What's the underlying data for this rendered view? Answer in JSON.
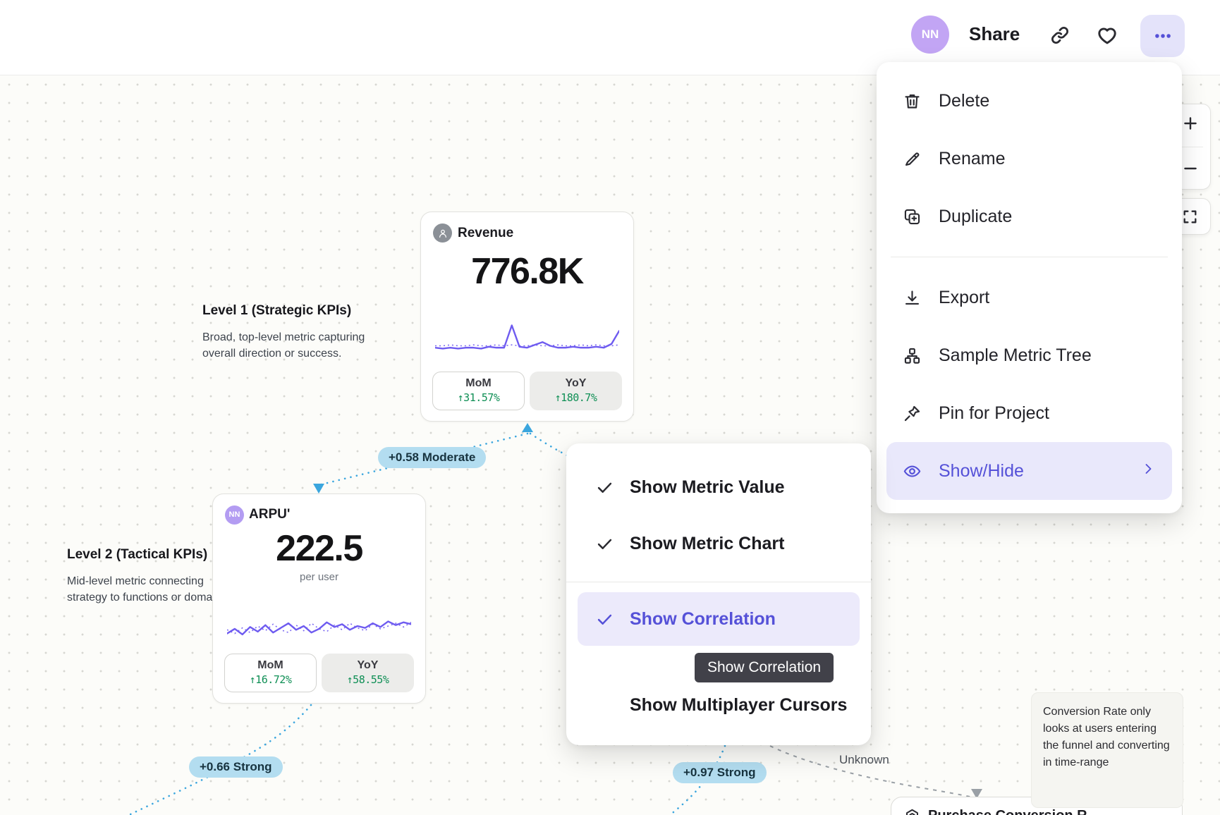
{
  "topbar": {
    "avatar_initials": "NN",
    "share_label": "Share"
  },
  "context_menu": {
    "items": [
      {
        "label": "Delete",
        "icon": "trash"
      },
      {
        "label": "Rename",
        "icon": "pencil"
      },
      {
        "label": "Duplicate",
        "icon": "duplicate"
      },
      {
        "label": "Export",
        "icon": "download"
      },
      {
        "label": "Sample Metric Tree",
        "icon": "tree"
      },
      {
        "label": "Pin for Project",
        "icon": "pin"
      },
      {
        "label": "Show/Hide",
        "icon": "eye",
        "active": true
      }
    ]
  },
  "view_menu": {
    "items": [
      {
        "label": "Show Metric Value",
        "checked": true,
        "active": false
      },
      {
        "label": "Show Metric Chart",
        "checked": true,
        "active": false
      },
      {
        "label": "Show Correlation",
        "checked": true,
        "active": true
      },
      {
        "label": "Show Multiplayer Cursors",
        "checked": false,
        "active": false
      }
    ],
    "tooltip": "Show Correlation"
  },
  "cards": {
    "revenue": {
      "title": "Revenue",
      "value": "776.8K",
      "chips": [
        {
          "label": "MoM",
          "value": "↑31.57%",
          "selected": true
        },
        {
          "label": "YoY",
          "value": "↑180.7%",
          "selected": false
        }
      ],
      "spark_solid": [
        9,
        8,
        9,
        8,
        9,
        9,
        8,
        10,
        9,
        9,
        33,
        10,
        9,
        12,
        15,
        11,
        9,
        9,
        10,
        9,
        9,
        10,
        9,
        13,
        27
      ],
      "spark_dotted": [
        11,
        11,
        12,
        11,
        11,
        12,
        11,
        11,
        12,
        11,
        12,
        11,
        11,
        12,
        11,
        11,
        12,
        11,
        11,
        12,
        11,
        12,
        11,
        11,
        12
      ]
    },
    "arpu": {
      "title": "ARPU'",
      "owner_initials": "NN",
      "value": "222.5",
      "unit": "per user",
      "chips": [
        {
          "label": "MoM",
          "value": "↑16.72%",
          "selected": true
        },
        {
          "label": "YoY",
          "value": "↑58.55%",
          "selected": false
        }
      ],
      "spark_solid": [
        14,
        19,
        13,
        21,
        16,
        23,
        15,
        20,
        25,
        18,
        22,
        15,
        19,
        26,
        21,
        24,
        18,
        22,
        20,
        25,
        21,
        27,
        23,
        26,
        24
      ],
      "spark_dotted": [
        18,
        14,
        20,
        15,
        22,
        17,
        24,
        18,
        15,
        23,
        17,
        25,
        19,
        16,
        23,
        18,
        25,
        20,
        17,
        24,
        19,
        22,
        25,
        21,
        26
      ]
    },
    "purchase": {
      "title": "Purchase Conversion R"
    }
  },
  "labels": {
    "level1_title": "Level 1 (Strategic KPIs)",
    "level1_desc": "Broad, top-level metric capturing overall direction or success.",
    "level2_title": "Level 2 (Tactical KPIs)",
    "level2_desc": "Mid-level metric connecting strategy to functions or doma",
    "note": "Conversion Rate only looks at users entering the funnel and converting in time-range",
    "unknown": "Unknown"
  },
  "correlations": [
    {
      "label": "+0.58 Moderate"
    },
    {
      "label": "+0.66 Strong"
    },
    {
      "label": "+0.97 Strong"
    }
  ],
  "colors": {
    "accent_purple": "#5551d8",
    "chart_purple": "#6e5bf0",
    "positive_green": "#0f8f55",
    "edge_blue": "#3ba6de",
    "correlation_chip_bg": "#b3ddf0"
  }
}
